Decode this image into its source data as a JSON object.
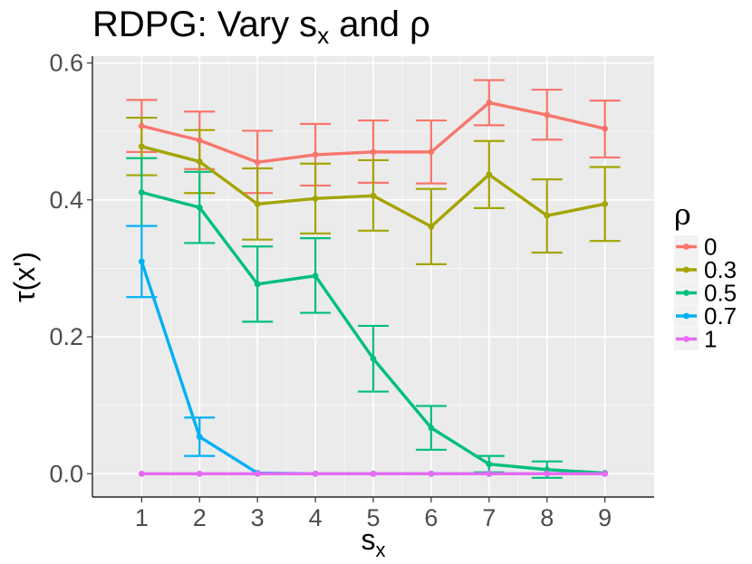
{
  "chart_data": {
    "type": "line",
    "title_main": "RDPG: Vary s",
    "title_sub": "x",
    "title_rest": " and ρ",
    "xlabel_main": "s",
    "xlabel_sub": "x",
    "ylabel": "τ(x')",
    "x": [
      1,
      2,
      3,
      4,
      5,
      6,
      7,
      8,
      9
    ],
    "xlim": [
      0.15,
      9.85
    ],
    "ylim": [
      -0.034,
      0.61
    ],
    "x_ticks": [
      "1",
      "2",
      "3",
      "4",
      "5",
      "6",
      "7",
      "8",
      "9"
    ],
    "y_ticks": [
      0.0,
      0.2,
      0.4,
      0.6
    ],
    "y_tick_labels": [
      "0.0",
      "0.2",
      "0.4",
      "0.6"
    ],
    "legend_title": "ρ",
    "series": [
      {
        "name": "0",
        "color": "#F8766D",
        "values": [
          0.508,
          0.487,
          0.455,
          0.466,
          0.47,
          0.47,
          0.542,
          0.524,
          0.504
        ],
        "lower": [
          0.47,
          0.445,
          0.41,
          0.421,
          0.425,
          0.424,
          0.509,
          0.488,
          0.462
        ],
        "upper": [
          0.546,
          0.529,
          0.501,
          0.511,
          0.516,
          0.516,
          0.575,
          0.561,
          0.545
        ]
      },
      {
        "name": "0.3",
        "color": "#A3A500",
        "values": [
          0.478,
          0.456,
          0.394,
          0.402,
          0.406,
          0.361,
          0.437,
          0.377,
          0.394
        ],
        "lower": [
          0.436,
          0.41,
          0.342,
          0.351,
          0.355,
          0.306,
          0.388,
          0.323,
          0.34
        ],
        "upper": [
          0.52,
          0.502,
          0.446,
          0.453,
          0.458,
          0.416,
          0.486,
          0.43,
          0.448
        ]
      },
      {
        "name": "0.5",
        "color": "#00BF7D",
        "values": [
          0.411,
          0.389,
          0.277,
          0.289,
          0.168,
          0.067,
          0.014,
          0.006,
          0.001
        ],
        "lower": [
          0.362,
          0.337,
          0.222,
          0.235,
          0.12,
          0.035,
          0.002,
          -0.006,
          0.0
        ],
        "upper": [
          0.461,
          0.441,
          0.332,
          0.344,
          0.216,
          0.099,
          0.026,
          0.018,
          0.002
        ]
      },
      {
        "name": "0.7",
        "color": "#00B0F6",
        "values": [
          0.31,
          0.054,
          0.001,
          0.0,
          0.0,
          0.0,
          0.0,
          0.0,
          0.0
        ],
        "lower": [
          0.258,
          0.026,
          0.0,
          0.0,
          0.0,
          0.0,
          0.0,
          0.0,
          0.0
        ],
        "upper": [
          0.362,
          0.082,
          0.002,
          0.0,
          0.0,
          0.0,
          0.0,
          0.0,
          0.0
        ]
      },
      {
        "name": "1",
        "color": "#E76BF3",
        "values": [
          0.0,
          0.0,
          0.0,
          0.0,
          0.0,
          0.0,
          0.0,
          0.0,
          0.0
        ],
        "lower": [
          0.0,
          0.0,
          0.0,
          0.0,
          0.0,
          0.0,
          0.0,
          0.0,
          0.0
        ],
        "upper": [
          0.0,
          0.0,
          0.0,
          0.0,
          0.0,
          0.0,
          0.0,
          0.0,
          0.0
        ]
      }
    ]
  }
}
